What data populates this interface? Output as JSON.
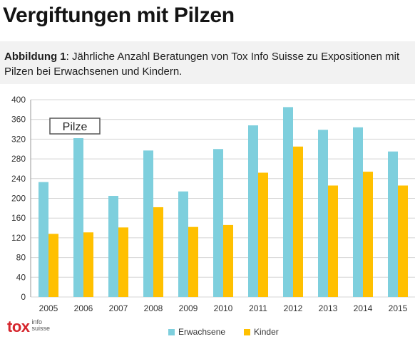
{
  "headline": "Vergiftungen mit Pilzen",
  "caption": {
    "label": "Abbildung 1",
    "text": ": Jährliche Anzahl Beratungen von Tox Info Suisse zu Expositionen mit Pilzen bei Erwachsenen und Kindern."
  },
  "logo": {
    "main": "tox",
    "line1": "info",
    "line2": "suisse"
  },
  "chart_data": {
    "type": "bar",
    "title": "Pilze",
    "xlabel": "",
    "ylabel": "",
    "ylim": [
      0,
      400
    ],
    "yticks": [
      0,
      40,
      80,
      120,
      160,
      200,
      240,
      280,
      320,
      360,
      400
    ],
    "grid": true,
    "legend_position": "bottom",
    "categories": [
      "2005",
      "2006",
      "2007",
      "2008",
      "2009",
      "2010",
      "2011",
      "2012",
      "2013",
      "2014",
      "2015"
    ],
    "series": [
      {
        "name": "Erwachsene",
        "color": "#7ecfdd",
        "values": [
          233,
          322,
          205,
          297,
          214,
          300,
          348,
          385,
          339,
          344,
          295
        ]
      },
      {
        "name": "Kinder",
        "color": "#ffc000",
        "values": [
          128,
          131,
          141,
          182,
          142,
          146,
          252,
          305,
          226,
          254,
          226
        ]
      }
    ]
  }
}
